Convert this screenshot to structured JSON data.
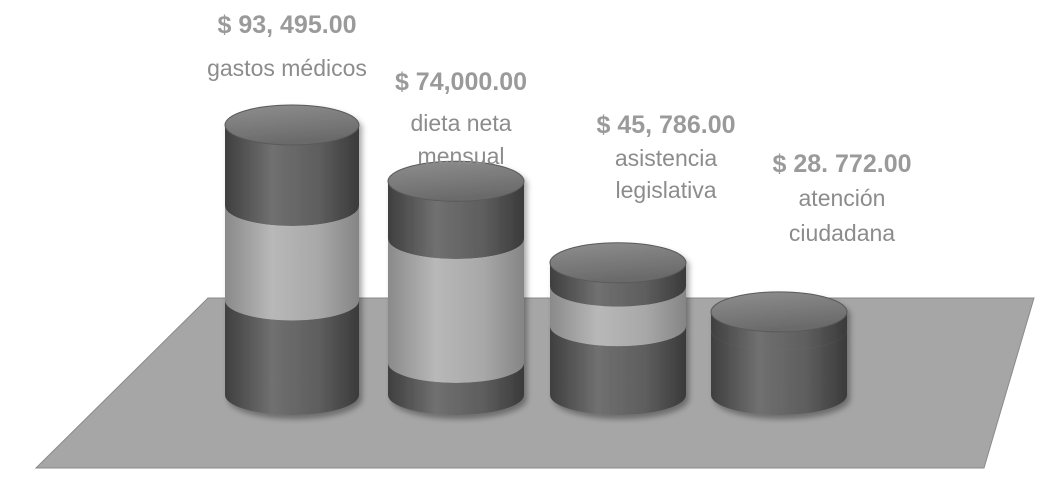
{
  "chart_data": {
    "type": "bar",
    "style": "3d-cylinder",
    "categories": [
      [
        "gastos médicos"
      ],
      [
        "dieta neta",
        "mensual"
      ],
      [
        "asistencia",
        "legislativa"
      ],
      [
        "atención",
        "ciudadana"
      ]
    ],
    "values": [
      93495,
      74000,
      45786,
      28772
    ],
    "value_labels": [
      "$ 93, 495.00",
      "$ 74,000.00",
      "$ 45, 786.00",
      "$ 28. 772.00"
    ],
    "title": "",
    "xlabel": "",
    "ylabel": "",
    "ylim": [
      0,
      100000
    ],
    "legend": "none",
    "grid": false,
    "colors": {
      "band_dark": "#616161",
      "band_light": "#a4a4a4",
      "top": "#7a7a7a",
      "floor": "#a6a6a6",
      "label": "#9a9a9a"
    }
  }
}
